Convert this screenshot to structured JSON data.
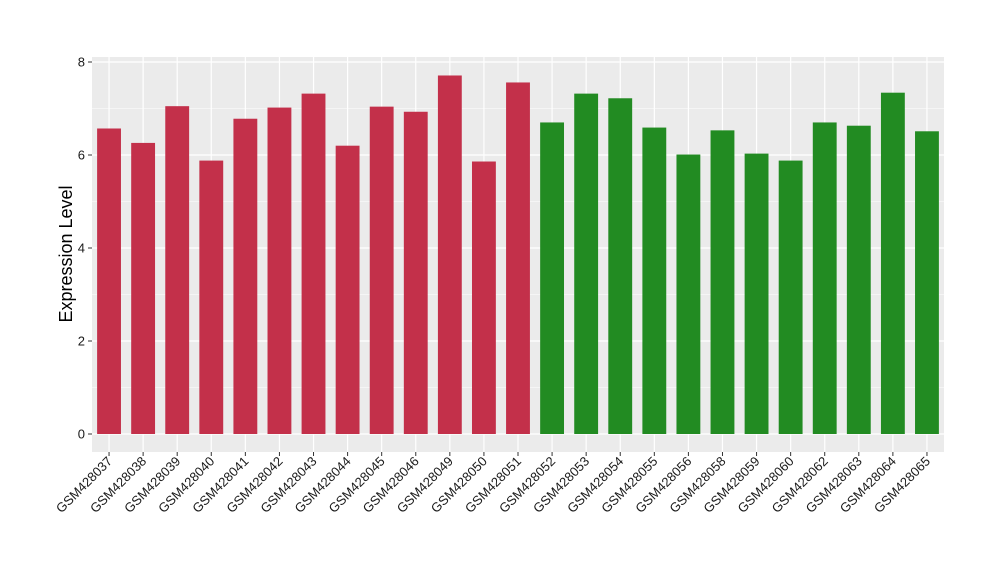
{
  "chart_data": {
    "type": "bar",
    "ylabel": "Expression Level",
    "xlabel": "",
    "ylim": [
      0,
      8
    ],
    "yticks": [
      0,
      2,
      4,
      6,
      8
    ],
    "grid": true,
    "categories": [
      "GSM428037",
      "GSM428038",
      "GSM428039",
      "GSM428040",
      "GSM428041",
      "GSM428042",
      "GSM428043",
      "GSM428044",
      "GSM428045",
      "GSM428046",
      "GSM428049",
      "GSM428050",
      "GSM428051",
      "GSM428052",
      "GSM428053",
      "GSM428054",
      "GSM428055",
      "GSM428056",
      "GSM428058",
      "GSM428059",
      "GSM428060",
      "GSM428062",
      "GSM428063",
      "GSM428064",
      "GSM428065"
    ],
    "values": [
      6.57,
      6.26,
      7.05,
      5.88,
      6.78,
      7.02,
      7.32,
      6.2,
      7.04,
      6.93,
      7.71,
      5.86,
      7.56,
      6.7,
      7.32,
      7.22,
      6.59,
      6.01,
      6.53,
      6.03,
      5.88,
      6.7,
      6.63,
      7.34,
      6.51
    ],
    "bar_colors": [
      "#C3304A",
      "#C3304A",
      "#C3304A",
      "#C3304A",
      "#C3304A",
      "#C3304A",
      "#C3304A",
      "#C3304A",
      "#C3304A",
      "#C3304A",
      "#C3304A",
      "#C3304A",
      "#C3304A",
      "#228B22",
      "#228B22",
      "#228B22",
      "#228B22",
      "#228B22",
      "#228B22",
      "#228B22",
      "#228B22",
      "#228B22",
      "#228B22",
      "#228B22",
      "#228B22"
    ],
    "panel_background": "#EBEBEB",
    "gridline_color": "#FFFFFF"
  }
}
